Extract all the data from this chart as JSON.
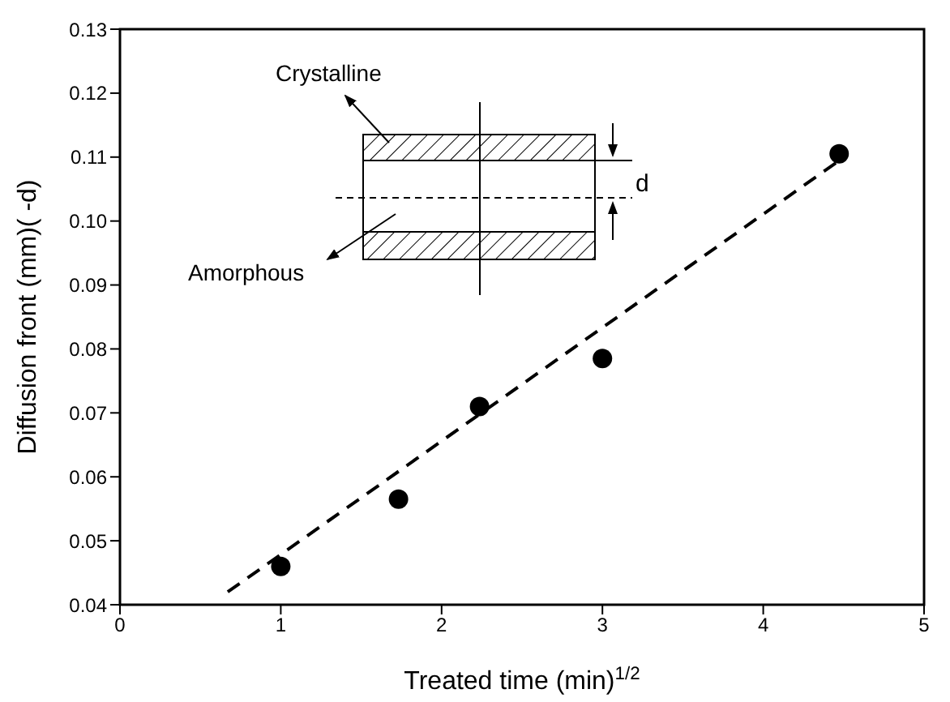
{
  "chart_data": {
    "type": "scatter",
    "xlabel": "Treated time (min)$^{1/2}$",
    "ylabel": "Diffusion front (mm)(   -d)",
    "xlim": [
      0,
      5
    ],
    "xticks": [
      0,
      1,
      2,
      3,
      4,
      5
    ],
    "ylim": [
      0.04,
      0.13
    ],
    "yticks": [
      0.04,
      0.05,
      0.06,
      0.07,
      0.08,
      0.09,
      {
        "value": 0.1,
        "label": "0.10"
      },
      0.11,
      0.12,
      0.13
    ],
    "marker": "circle",
    "series": [
      {
        "type": "scatter",
        "color": "#000000",
        "x": [
          1,
          1.732,
          2.236,
          3,
          4.472
        ],
        "values": [
          0.046,
          0.0565,
          0.071,
          0.0785,
          0.1105
        ]
      },
      {
        "type": "line",
        "color": "#000000",
        "line_style": "dashed",
        "marker": "none",
        "x": [
          0.67,
          4.52
        ],
        "values": [
          0.042,
          0.1103
        ]
      }
    ],
    "annotations": [
      "Crystalline",
      "Amorphous",
      "d"
    ]
  }
}
